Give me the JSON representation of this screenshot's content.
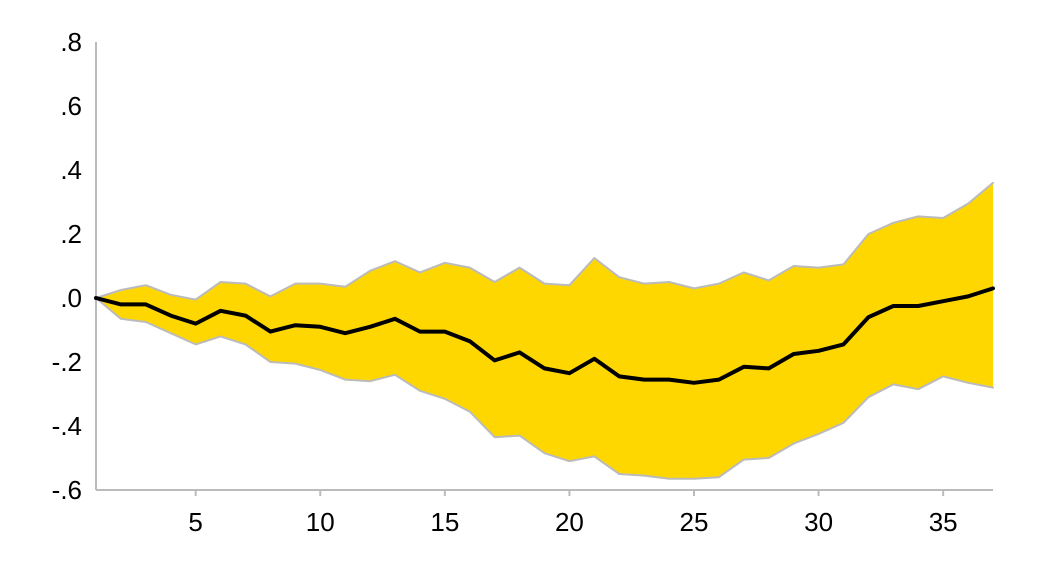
{
  "chart_data": {
    "type": "line",
    "title": "",
    "xlabel": "",
    "ylabel": "",
    "xlim": [
      1,
      37
    ],
    "ylim": [
      -0.6,
      0.8
    ],
    "x_ticks": [
      5,
      10,
      15,
      20,
      25,
      30,
      35
    ],
    "x_tick_labels": [
      "5",
      "10",
      "15",
      "20",
      "25",
      "30",
      "35"
    ],
    "y_ticks": [
      0.8,
      0.6,
      0.4,
      0.2,
      0.0,
      -0.2,
      -0.4,
      -0.6
    ],
    "y_tick_labels": [
      ".8",
      ".6",
      ".4",
      ".2",
      ".0",
      "-.2",
      "-.4",
      "-.6"
    ],
    "grid": false,
    "legend": "none",
    "x": [
      1,
      2,
      3,
      4,
      5,
      6,
      7,
      8,
      9,
      10,
      11,
      12,
      13,
      14,
      15,
      16,
      17,
      18,
      19,
      20,
      21,
      22,
      23,
      24,
      25,
      26,
      27,
      28,
      29,
      30,
      31,
      32,
      33,
      34,
      35,
      36,
      37
    ],
    "series": [
      {
        "role": "upper_band",
        "values": [
          0.0,
          0.025,
          0.04,
          0.01,
          -0.005,
          0.05,
          0.045,
          0.005,
          0.045,
          0.045,
          0.035,
          0.085,
          0.115,
          0.08,
          0.11,
          0.095,
          0.05,
          0.095,
          0.045,
          0.04,
          0.125,
          0.065,
          0.045,
          0.05,
          0.03,
          0.045,
          0.08,
          0.055,
          0.1,
          0.095,
          0.105,
          0.2,
          0.235,
          0.255,
          0.25,
          0.295,
          0.36
        ],
        "color": "#BBBBBB"
      },
      {
        "role": "lower_band",
        "values": [
          0.0,
          -0.065,
          -0.075,
          -0.11,
          -0.145,
          -0.12,
          -0.145,
          -0.2,
          -0.205,
          -0.225,
          -0.255,
          -0.26,
          -0.24,
          -0.29,
          -0.315,
          -0.355,
          -0.435,
          -0.43,
          -0.485,
          -0.51,
          -0.495,
          -0.55,
          -0.555,
          -0.565,
          -0.565,
          -0.56,
          -0.505,
          -0.5,
          -0.455,
          -0.425,
          -0.39,
          -0.31,
          -0.27,
          -0.285,
          -0.245,
          -0.265,
          -0.28
        ],
        "color": "#BBBBBB"
      },
      {
        "role": "estimate",
        "values": [
          0.0,
          -0.02,
          -0.02,
          -0.055,
          -0.08,
          -0.04,
          -0.055,
          -0.105,
          -0.085,
          -0.09,
          -0.11,
          -0.09,
          -0.065,
          -0.105,
          -0.105,
          -0.135,
          -0.195,
          -0.17,
          -0.22,
          -0.235,
          -0.19,
          -0.245,
          -0.255,
          -0.255,
          -0.265,
          -0.255,
          -0.215,
          -0.22,
          -0.175,
          -0.165,
          -0.145,
          -0.06,
          -0.025,
          -0.025,
          -0.01,
          0.005,
          0.03
        ],
        "color": "#000000"
      }
    ],
    "band_fill_color": "#FFD700",
    "axis_color": "#BBBBBB"
  }
}
